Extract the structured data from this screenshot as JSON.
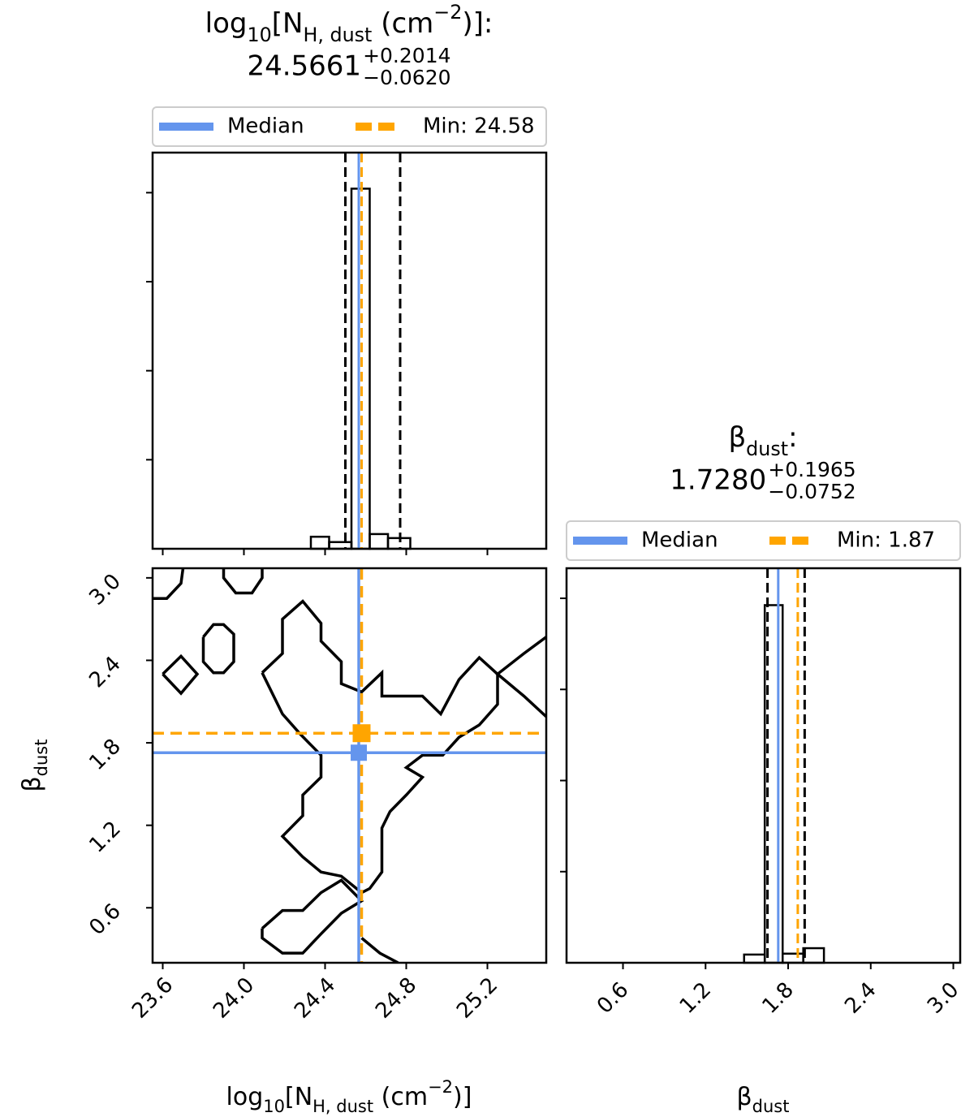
{
  "chart_data": [
    {
      "type": "histogram",
      "title": [
        {
          "text": "log"
        },
        {
          "sub": "10"
        },
        {
          "text": "[N"
        },
        {
          "sub": "H, dust"
        },
        {
          "text": " (cm"
        },
        {
          "sup": "−2"
        },
        {
          "text": ")]:"
        }
      ],
      "median": {
        "value": 24.5661,
        "label": "24.5661"
      },
      "err_plus": {
        "value": 0.2014,
        "label": "+0.2014"
      },
      "err_minus": {
        "value": 0.062,
        "label": "−0.0620"
      },
      "legend": [
        {
          "name": "Median",
          "color": "#6495ED",
          "style": "solid"
        },
        {
          "name": "Min: 24.58",
          "color": "#FFA500",
          "style": "dashed"
        }
      ],
      "min": 24.58,
      "quantiles": [
        24.5,
        24.77
      ],
      "bins": [
        24.33,
        24.42,
        24.53,
        24.62,
        24.71,
        24.82
      ],
      "counts": [
        0.027,
        0.015,
        0.809,
        0.033,
        0.024
      ],
      "xlim": [
        23.55,
        25.49
      ],
      "ylim": [
        0,
        0.89
      ],
      "xticks": [
        23.6,
        24,
        24.4,
        24.8,
        25.2
      ],
      "yticks": [
        0.2,
        0.4,
        0.6,
        0.8
      ],
      "xticklabels": false,
      "yticklabels": false
    },
    {
      "type": "contour",
      "xlabel": [
        {
          "text": "log"
        },
        {
          "sub": "10"
        },
        {
          "text": "[N"
        },
        {
          "sub": "H, dust"
        },
        {
          "text": " (cm"
        },
        {
          "sup": "−2"
        },
        {
          "text": ")]"
        }
      ],
      "ylabel": [
        {
          "text": "β"
        },
        {
          "sub": "dust"
        }
      ],
      "color": "#000000",
      "contours": [
        {
          "x": [
            23.55,
            23.62,
            23.69,
            23.7
          ],
          "y": [
            2.85,
            2.85,
            2.96,
            3.07
          ]
        },
        {
          "x": [
            23.9,
            23.9,
            23.96,
            24.04,
            24.09,
            24.09
          ],
          "y": [
            3.07,
            3.0,
            2.89,
            2.89,
            3.0,
            3.07
          ]
        },
        {
          "x": [
            23.8,
            23.85,
            23.9,
            23.95,
            23.95,
            23.9,
            23.85,
            23.8,
            23.8
          ],
          "y": [
            2.57,
            2.66,
            2.66,
            2.59,
            2.39,
            2.31,
            2.31,
            2.39,
            2.57
          ]
        },
        {
          "x": [
            23.6,
            23.69,
            23.77,
            23.69,
            23.6
          ],
          "y": [
            2.3,
            2.43,
            2.3,
            2.16,
            2.3
          ]
        },
        {
          "x": [
            24.09,
            24.19,
            24.19,
            24.29,
            24.38,
            24.38,
            24.48,
            24.48,
            24.58,
            24.68,
            24.68,
            24.88,
            24.97,
            25.06,
            25.16,
            25.25,
            25.25,
            25.16,
            25.06,
            24.98,
            24.88,
            24.8,
            24.88,
            24.8,
            24.72,
            24.68,
            24.68,
            24.62,
            24.58,
            24.48,
            24.38,
            24.29,
            24.19,
            24.29,
            24.29,
            24.38,
            24.38,
            24.28,
            24.19,
            24.09
          ],
          "y": [
            2.31,
            2.45,
            2.7,
            2.83,
            2.67,
            2.54,
            2.39,
            2.23,
            2.17,
            2.31,
            2.14,
            2.14,
            2.01,
            2.26,
            2.42,
            2.3,
            2.08,
            1.93,
            1.84,
            1.71,
            1.71,
            1.62,
            1.55,
            1.42,
            1.3,
            1.18,
            0.86,
            0.74,
            0.71,
            0.83,
            0.86,
            0.97,
            1.12,
            1.27,
            1.42,
            1.55,
            1.71,
            1.86,
            2.01,
            2.31
          ]
        },
        {
          "x": [
            24.09,
            24.19,
            24.29,
            24.38,
            24.48,
            24.58,
            24.48,
            24.38,
            24.29,
            24.19,
            24.09,
            24.09
          ],
          "y": [
            0.45,
            0.58,
            0.58,
            0.71,
            0.8,
            0.65,
            0.56,
            0.41,
            0.27,
            0.27,
            0.38,
            0.45
          ]
        },
        {
          "x": [
            24.58,
            24.67,
            24.76
          ],
          "y": [
            0.38,
            0.27,
            0.2
          ]
        },
        {
          "x": [
            25.49,
            25.38,
            25.25,
            25.38,
            25.49
          ],
          "y": [
            2.57,
            2.45,
            2.3,
            2.14,
            1.99
          ]
        }
      ],
      "xlim": [
        23.55,
        25.49
      ],
      "ylim": [
        0.2,
        3.07
      ],
      "xticks": [
        23.6,
        {
          "value": 24,
          "label": "24.0"
        },
        24.4,
        24.8,
        25.2
      ],
      "yticks": [
        0.6,
        1.2,
        1.8,
        2.4,
        {
          "value": 3,
          "label": "3.0"
        }
      ]
    },
    {
      "type": "histogram",
      "title": [
        {
          "text": "β"
        },
        {
          "sub": "dust"
        },
        {
          "text": ":"
        }
      ],
      "median": {
        "value": 1.728,
        "label": "1.7280"
      },
      "err_plus": {
        "value": 0.1965,
        "label": "+0.1965"
      },
      "err_minus": {
        "value": 0.0752,
        "label": "−0.0752"
      },
      "legend": [
        {
          "name": "Median",
          "color": "#6495ED",
          "style": "solid"
        },
        {
          "name": "Min: 1.87",
          "color": "#FFA500",
          "style": "dashed"
        }
      ],
      "min": 1.87,
      "quantiles": [
        1.65,
        1.92
      ],
      "bins": [
        1.48,
        1.63,
        1.76,
        1.91,
        2.06
      ],
      "counts": [
        0.018,
        0.785,
        0.02,
        0.032
      ],
      "xlim": [
        0.19,
        3.05
      ],
      "ylim": [
        0,
        0.866
      ],
      "xticks": [
        0.6,
        1.2,
        1.8,
        2.4,
        {
          "value": 3,
          "label": "3.0"
        }
      ],
      "yticks": [
        0.2,
        0.4,
        0.6,
        0.8
      ],
      "xlabel": [
        {
          "text": "β"
        },
        {
          "sub": "dust"
        }
      ],
      "xticklabels": true,
      "yticklabels": false
    }
  ]
}
